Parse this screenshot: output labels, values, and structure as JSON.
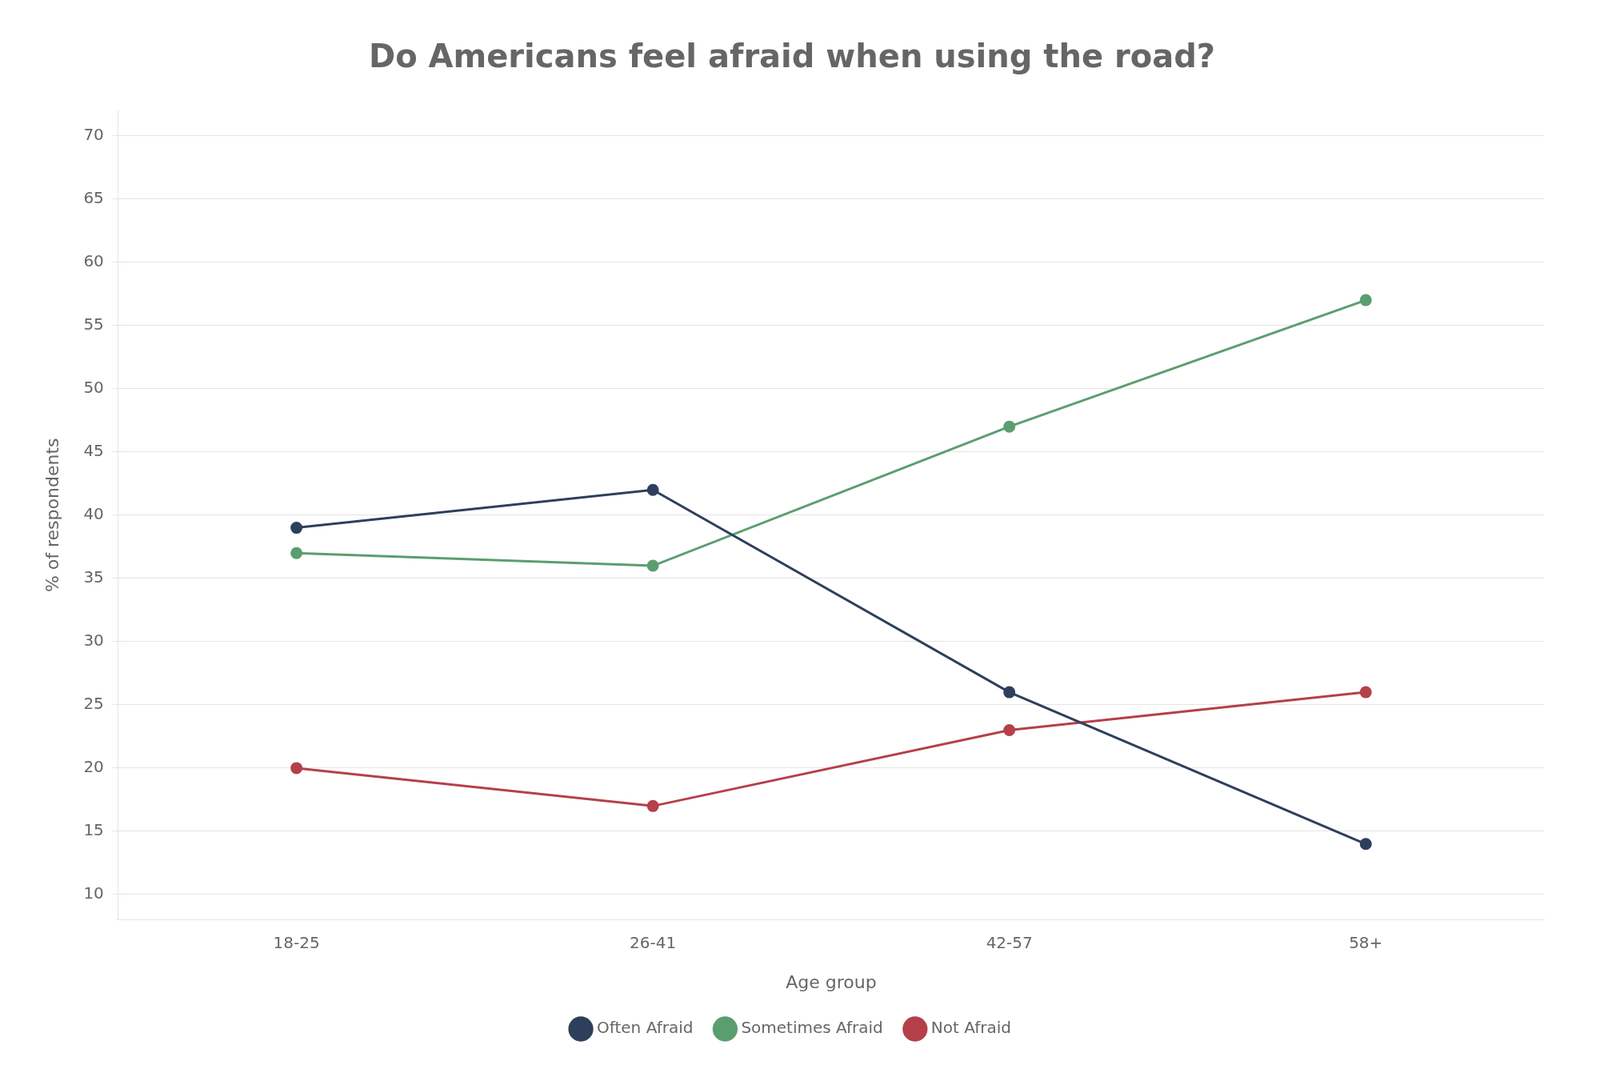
{
  "chart_data": {
    "type": "line",
    "title": "Do Americans feel afraid when using the road?",
    "xlabel": "Age group",
    "ylabel": "% of respondents",
    "categories": [
      "18-25",
      "26-41",
      "42-57",
      "58+"
    ],
    "series": [
      {
        "name": "Often Afraid",
        "color": "#2e3f5c",
        "marker": "circle",
        "values": [
          39,
          42,
          26,
          14
        ]
      },
      {
        "name": "Sometimes Afraid",
        "color": "#5a9e6f",
        "marker": "circle",
        "values": [
          37,
          36,
          47,
          57
        ]
      },
      {
        "name": "Not Afraid",
        "color": "#b5404a",
        "marker": "circle",
        "values": [
          20,
          17,
          23,
          26
        ]
      }
    ],
    "ylim": [
      8,
      72
    ],
    "yticks": [
      10,
      15,
      20,
      25,
      30,
      35,
      40,
      45,
      50,
      55,
      60,
      65,
      70
    ],
    "grid": true,
    "legend": "bottom"
  }
}
